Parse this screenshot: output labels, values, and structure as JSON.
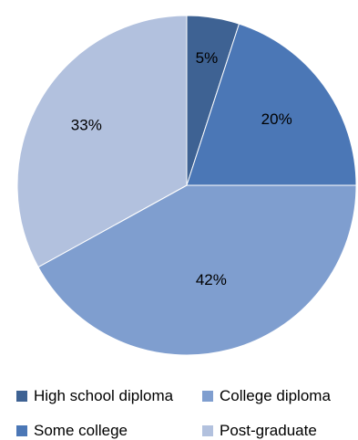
{
  "chart_data": {
    "type": "pie",
    "categories": [
      "High school diploma",
      "Some college",
      "College diploma",
      "Post-graduate"
    ],
    "values": [
      5,
      20,
      42,
      33
    ],
    "labels": [
      "5%",
      "20%",
      "42%",
      "33%"
    ],
    "colors": [
      "#3e6293",
      "#4b77b6",
      "#7f9ecf",
      "#b2c1de"
    ],
    "title": "",
    "legend_position": "bottom"
  },
  "legend": {
    "items": [
      {
        "label": "High school diploma",
        "color": "#3e6293"
      },
      {
        "label": "College diploma",
        "color": "#7f9ecf"
      },
      {
        "label": "Some college",
        "color": "#4b77b6"
      },
      {
        "label": "Post-graduate",
        "color": "#b2c1de"
      }
    ]
  }
}
